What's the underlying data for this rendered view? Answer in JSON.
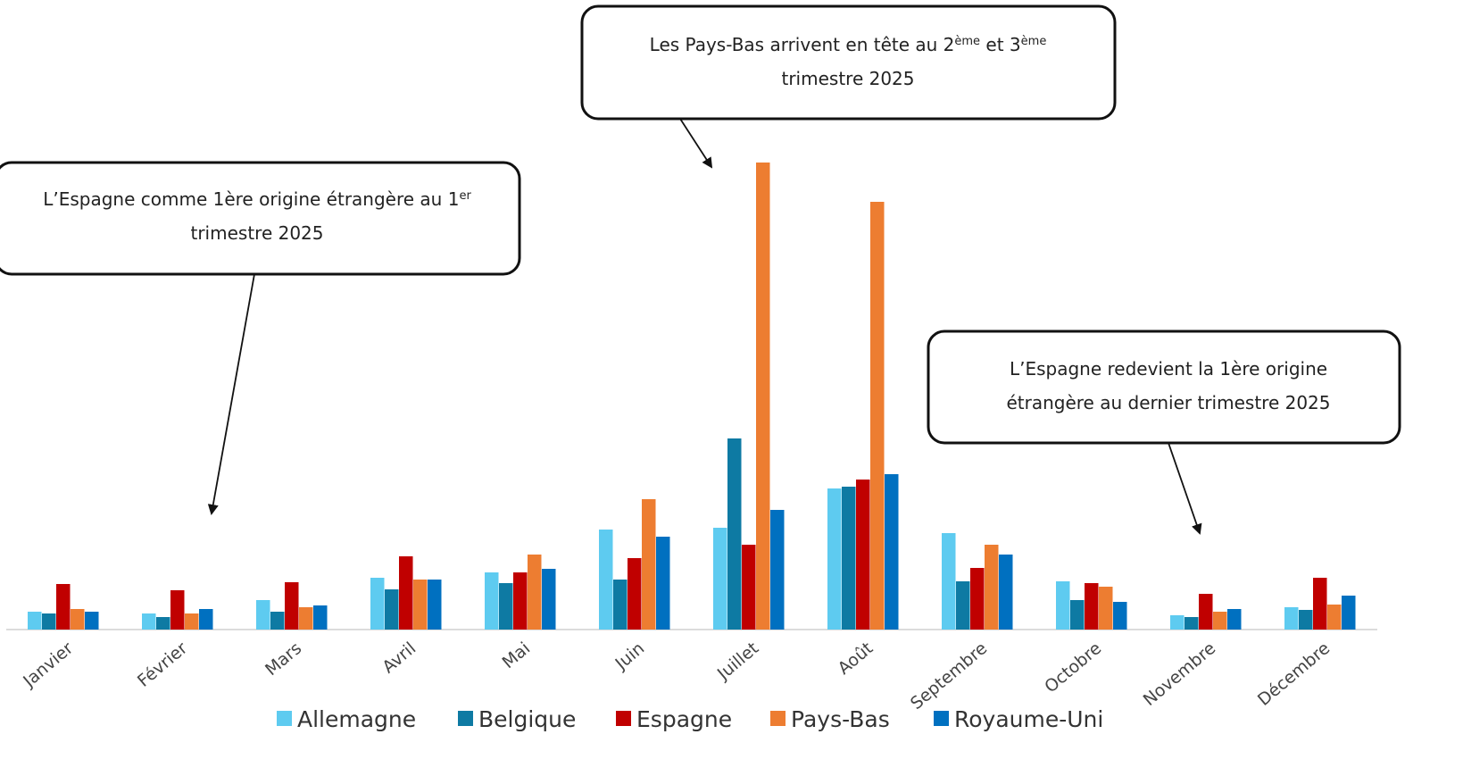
{
  "chart_data": {
    "type": "bar",
    "categories": [
      "Janvier",
      "Février",
      "Mars",
      "Avril",
      "Mai",
      "Juin",
      "Juillet",
      "Août",
      "Septembre",
      "Octobre",
      "Novembre",
      "Décembre"
    ],
    "series": [
      {
        "name": "Allemagne",
        "color": "#5ecbf0",
        "values": [
          20,
          18,
          33,
          58,
          64,
          112,
          114,
          158,
          108,
          54,
          16,
          25
        ]
      },
      {
        "name": "Belgique",
        "color": "#0e7aa3",
        "values": [
          18,
          14,
          20,
          45,
          52,
          56,
          214,
          160,
          54,
          33,
          14,
          22
        ]
      },
      {
        "name": "Espagne",
        "color": "#c00000",
        "values": [
          51,
          44,
          53,
          82,
          64,
          80,
          95,
          168,
          69,
          52,
          40,
          58
        ]
      },
      {
        "name": "Pays-Bas",
        "color": "#ed7d31",
        "values": [
          23,
          18,
          25,
          56,
          84,
          146,
          523,
          479,
          95,
          48,
          20,
          28
        ]
      },
      {
        "name": "Royaume-Uni",
        "color": "#0070c0",
        "values": [
          20,
          23,
          27,
          56,
          68,
          104,
          134,
          174,
          84,
          31,
          23,
          38
        ]
      }
    ],
    "ylim": [
      0,
      530
    ],
    "legend": "bottom",
    "annotations": [
      {
        "lines": [
          [
            {
              "text": "L’Espagne comme 1ère origine étrangère au 1"
            },
            {
              "text": "er",
              "sup": true
            }
          ],
          [
            {
              "text": "trimestre 2025"
            }
          ]
        ]
      },
      {
        "lines": [
          [
            {
              "text": "Les Pays-Bas arrivent en tête au 2"
            },
            {
              "text": "ème",
              "sup": true
            },
            {
              "text": " et 3"
            },
            {
              "text": "ème",
              "sup": true
            }
          ],
          [
            {
              "text": "trimestre 2025"
            }
          ]
        ]
      },
      {
        "lines": [
          [
            {
              "text": "L’Espagne redevient la 1ère origine"
            }
          ],
          [
            {
              "text": "étrangère au dernier trimestre 2025"
            }
          ]
        ]
      }
    ]
  }
}
